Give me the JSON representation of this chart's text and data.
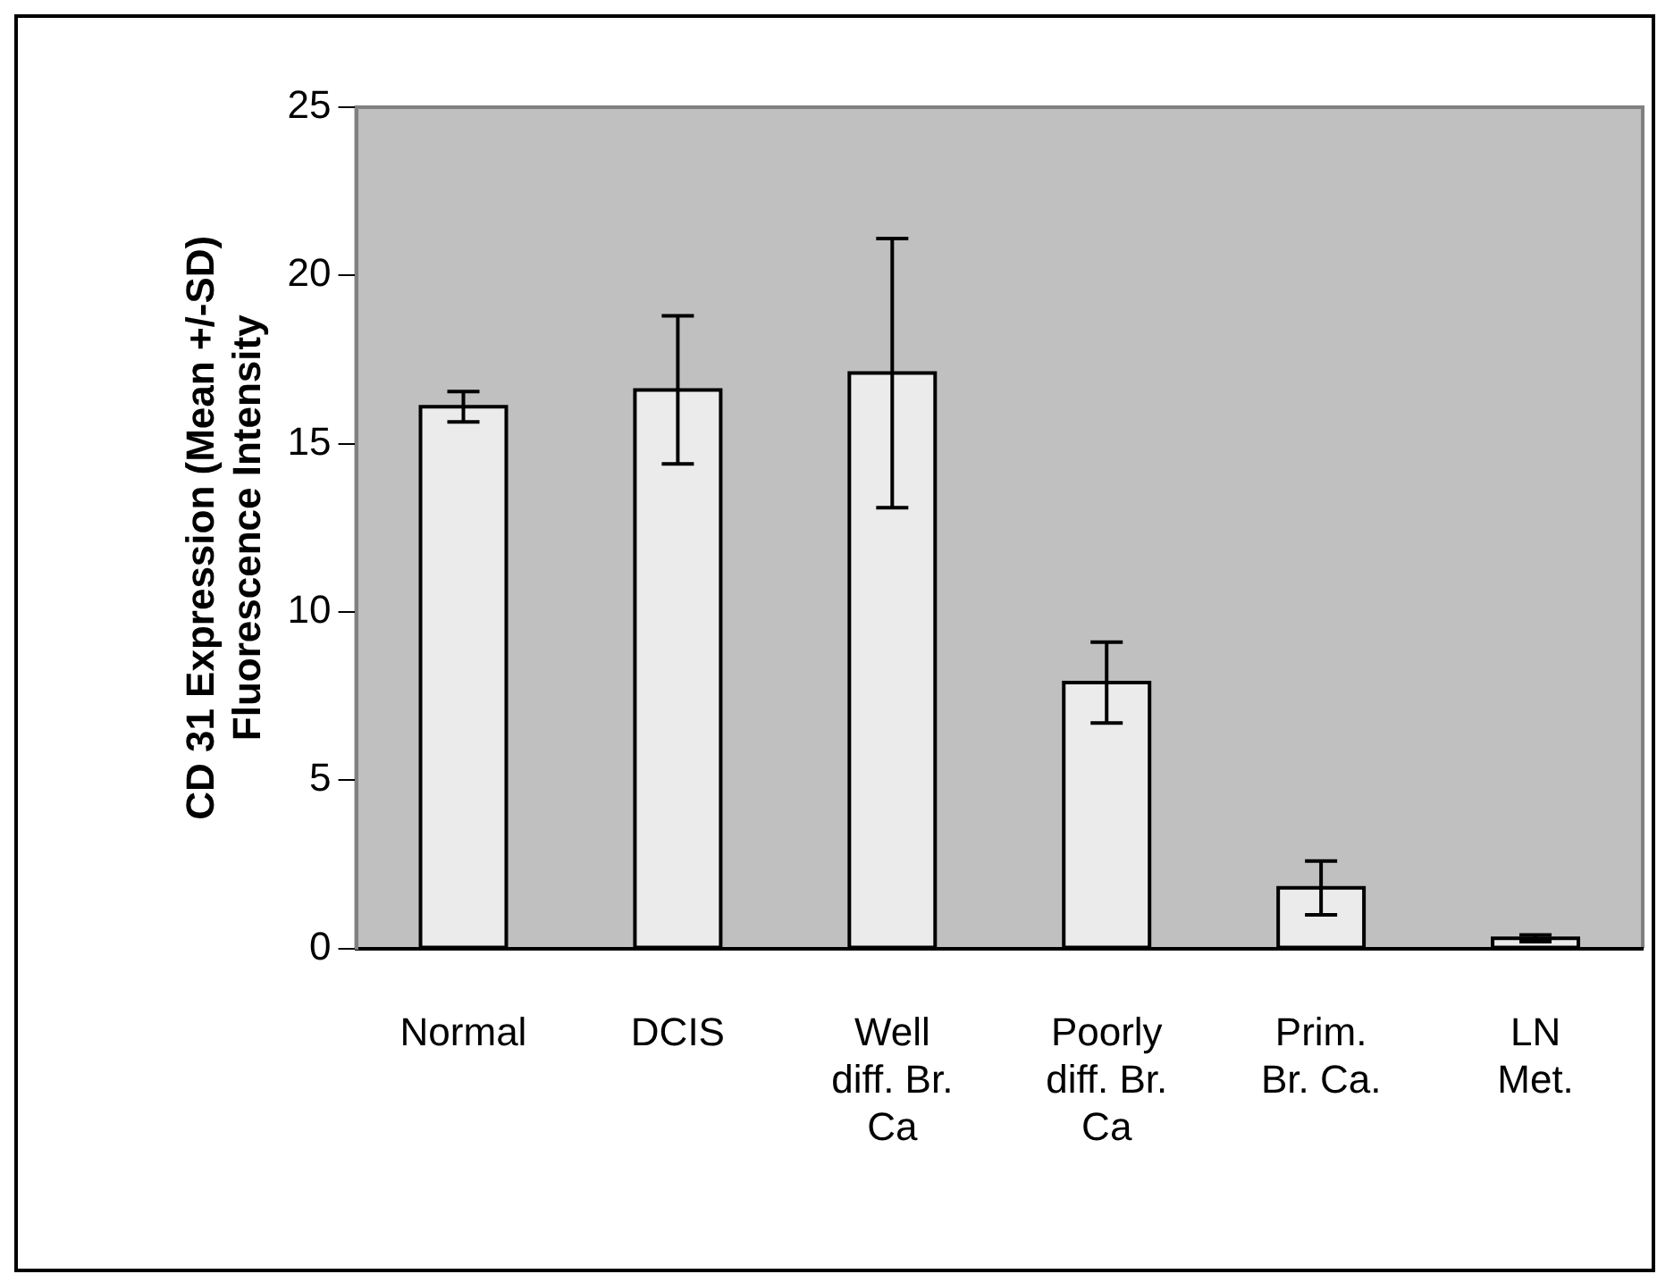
{
  "chart_data": {
    "type": "bar",
    "ylabel": "CD 31 Expression (Mean +/-SD) Fluorescence Intensity",
    "categories": [
      "Normal",
      "DCIS",
      "Well diff. Br. Ca",
      "Poorly diff. Br. Ca",
      "Prim. Br. Ca.",
      "LN Met."
    ],
    "values": [
      16.1,
      16.6,
      17.1,
      7.9,
      1.8,
      0.3
    ],
    "errors": [
      0.45,
      2.2,
      4.0,
      1.2,
      0.8,
      0.1
    ],
    "color": "#ebebeb",
    "ylim": [
      0,
      25
    ],
    "yticks": [
      0,
      5,
      10,
      15,
      20,
      25
    ],
    "grid": false,
    "legend": false
  }
}
